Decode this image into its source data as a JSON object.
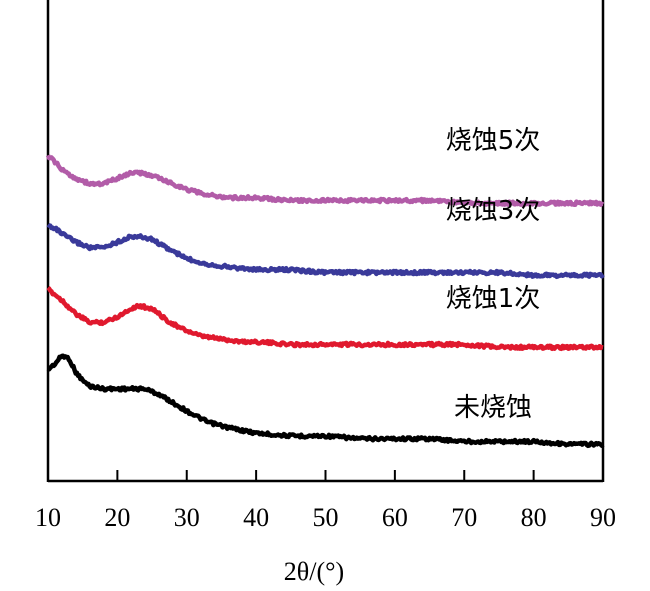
{
  "chart_data": {
    "type": "line",
    "xlabel": "2θ/(°)",
    "ylabel": "",
    "xlim": [
      10,
      90
    ],
    "x_ticks": [
      10,
      20,
      30,
      40,
      50,
      60,
      70,
      80,
      90
    ],
    "y_ticks_labeled": false,
    "grid": false,
    "legend": "inline-right",
    "series": [
      {
        "name": "未烧蚀",
        "color": "#000000",
        "x": [
          10,
          11,
          12,
          13,
          14,
          15,
          16,
          18,
          20,
          22,
          24,
          26,
          28,
          30,
          33,
          36,
          40,
          45,
          50,
          55,
          60,
          65,
          70,
          75,
          80,
          85,
          90
        ],
        "y": [
          0.28,
          0.3,
          0.33,
          0.32,
          0.27,
          0.24,
          0.22,
          0.21,
          0.21,
          0.21,
          0.21,
          0.19,
          0.16,
          0.13,
          0.09,
          0.07,
          0.05,
          0.04,
          0.04,
          0.03,
          0.03,
          0.03,
          0.02,
          0.02,
          0.02,
          0.01,
          0.01
        ]
      },
      {
        "name": "烧蚀1次",
        "color": "#e0192e",
        "x": [
          10,
          11,
          12,
          14,
          16,
          18,
          20,
          22,
          23,
          25,
          27,
          29,
          32,
          35,
          38,
          40,
          45,
          50,
          55,
          60,
          65,
          70,
          75,
          80,
          85,
          90
        ],
        "y": [
          0.57,
          0.55,
          0.53,
          0.48,
          0.45,
          0.45,
          0.47,
          0.5,
          0.51,
          0.5,
          0.46,
          0.43,
          0.4,
          0.39,
          0.38,
          0.38,
          0.37,
          0.37,
          0.37,
          0.37,
          0.37,
          0.37,
          0.36,
          0.36,
          0.36,
          0.36
        ]
      },
      {
        "name": "烧蚀3次",
        "color": "#3a3a9a",
        "x": [
          10,
          11,
          12,
          14,
          16,
          18,
          20,
          22,
          23,
          25,
          27,
          30,
          33,
          36,
          40,
          45,
          50,
          55,
          60,
          65,
          70,
          75,
          80,
          85,
          90
        ],
        "y": [
          0.8,
          0.79,
          0.77,
          0.74,
          0.72,
          0.72,
          0.74,
          0.76,
          0.76,
          0.75,
          0.72,
          0.68,
          0.66,
          0.65,
          0.64,
          0.64,
          0.63,
          0.63,
          0.63,
          0.63,
          0.63,
          0.63,
          0.62,
          0.62,
          0.62
        ]
      },
      {
        "name": "烧蚀5次",
        "color": "#b25ca8",
        "x": [
          10,
          11,
          12,
          14,
          16,
          18,
          20,
          22,
          23,
          25,
          27,
          30,
          33,
          36,
          40,
          45,
          50,
          55,
          60,
          65,
          70,
          75,
          80,
          85,
          90
        ],
        "y": [
          1.05,
          1.03,
          1.0,
          0.97,
          0.95,
          0.95,
          0.97,
          0.99,
          0.99,
          0.98,
          0.96,
          0.93,
          0.91,
          0.9,
          0.9,
          0.89,
          0.89,
          0.89,
          0.89,
          0.89,
          0.88,
          0.88,
          0.88,
          0.88,
          0.88
        ]
      }
    ]
  }
}
